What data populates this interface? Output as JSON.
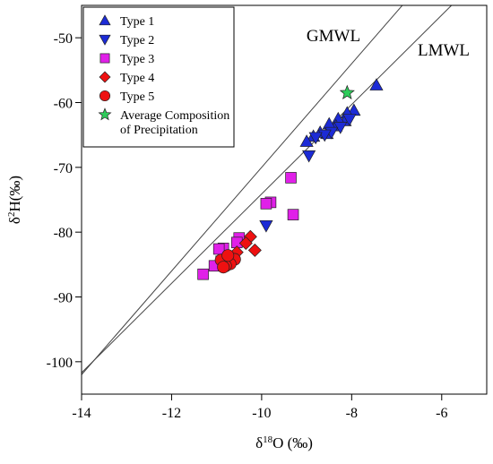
{
  "chart_data": {
    "type": "scatter",
    "title": "",
    "xlabel": {
      "prefix": "δ",
      "sup": "18",
      "suffix": "O (‰)"
    },
    "ylabel": {
      "prefix": "δ",
      "sup": "2",
      "suffix": "H(‰)"
    },
    "xlim": [
      -14,
      -5
    ],
    "ylim": [
      -105,
      -45
    ],
    "xticks": [
      -14,
      -12,
      -10,
      -8,
      -6
    ],
    "yticks": [
      -100,
      -90,
      -80,
      -70,
      -60,
      -50
    ],
    "grid": false,
    "legend_position": "top-left",
    "series": [
      {
        "name": "Type 1",
        "marker": "triangle-up",
        "color": "#1c2bd6",
        "points": [
          [
            -7.45,
            -57.3
          ],
          [
            -7.95,
            -61.2
          ],
          [
            -8.1,
            -61.6
          ],
          [
            -8.15,
            -62.8
          ],
          [
            -8.3,
            -62.5
          ],
          [
            -8.35,
            -63.6
          ],
          [
            -8.5,
            -63.3
          ],
          [
            -8.55,
            -64.8
          ],
          [
            -8.7,
            -64.6
          ],
          [
            -8.85,
            -65.2
          ],
          [
            -9.0,
            -66.0
          ]
        ]
      },
      {
        "name": "Type 2",
        "marker": "triangle-down",
        "color": "#1c2bd6",
        "points": [
          [
            -8.05,
            -62.6
          ],
          [
            -8.25,
            -63.8
          ],
          [
            -8.45,
            -64.6
          ],
          [
            -8.6,
            -65.0
          ],
          [
            -8.8,
            -65.4
          ],
          [
            -8.95,
            -68.2
          ],
          [
            -9.9,
            -79.0
          ]
        ]
      },
      {
        "name": "Type 3",
        "marker": "square",
        "color": "#e020e8",
        "points": [
          [
            -9.35,
            -71.6
          ],
          [
            -9.3,
            -77.3
          ],
          [
            -9.8,
            -75.4
          ],
          [
            -9.9,
            -75.6
          ],
          [
            -10.5,
            -80.9
          ],
          [
            -10.55,
            -81.6
          ],
          [
            -10.85,
            -82.5
          ],
          [
            -10.95,
            -82.6
          ],
          [
            -10.9,
            -84.5
          ],
          [
            -11.05,
            -85.2
          ],
          [
            -11.3,
            -86.5
          ]
        ]
      },
      {
        "name": "Type 4",
        "marker": "diamond",
        "color": "#ee1111",
        "points": [
          [
            -10.25,
            -80.7
          ],
          [
            -10.15,
            -82.8
          ],
          [
            -10.35,
            -81.7
          ],
          [
            -10.55,
            -83.1
          ],
          [
            -10.7,
            -84.1
          ]
        ]
      },
      {
        "name": "Type 5",
        "marker": "circle",
        "color": "#ee1111",
        "points": [
          [
            -10.6,
            -84.2
          ],
          [
            -10.7,
            -84.9
          ],
          [
            -10.8,
            -85.2
          ],
          [
            -10.9,
            -84.3
          ],
          [
            -10.85,
            -85.4
          ],
          [
            -10.75,
            -83.6
          ]
        ]
      },
      {
        "name": "Average Composition of Precipitation",
        "legend_lines": [
          "Average Composition",
          "of Precipitation"
        ],
        "marker": "star",
        "color": "#2ecc5a",
        "points": [
          [
            -8.1,
            -58.5
          ]
        ]
      }
    ],
    "lines": [
      {
        "label": "GMWL",
        "slope": 8,
        "intercept": 10
      },
      {
        "label": "LMWL",
        "slope": 6.9,
        "intercept": -5.1
      }
    ]
  }
}
